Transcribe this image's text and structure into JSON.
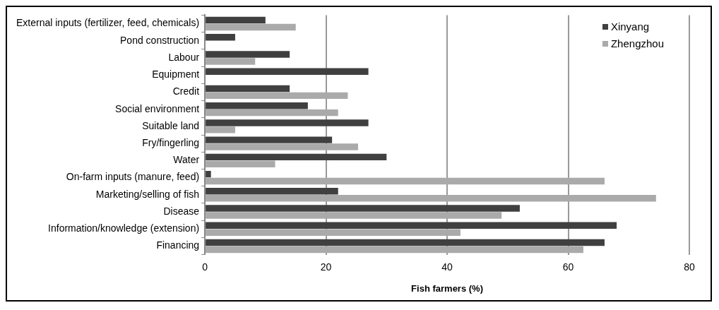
{
  "chart_data": {
    "type": "bar",
    "orientation": "horizontal",
    "xlabel": "Fish farmers (%)",
    "categories": [
      "External inputs (fertilizer, feed, chemicals)",
      "Pond construction",
      "Labour",
      "Equipment",
      "Credit",
      "Social environment",
      "Suitable land",
      "Fry/fingerling",
      "Water",
      "On-farm inputs (manure, feed)",
      "Marketing/selling of fish",
      "Disease",
      "Information/knowledge (extension)",
      "Financing"
    ],
    "series": [
      {
        "name": "Xinyang",
        "color": "#404040",
        "values": [
          10,
          5,
          14,
          27,
          14,
          17,
          27,
          21,
          30,
          1,
          22,
          52,
          68,
          66
        ]
      },
      {
        "name": "Zhengzhou",
        "color": "#aaaaaa",
        "values": [
          15,
          null,
          8.3,
          null,
          23.6,
          22,
          5,
          25.3,
          11.6,
          66,
          74.5,
          49,
          42.2,
          62.5
        ]
      }
    ],
    "xlim": [
      0,
      80
    ],
    "xticks": [
      0,
      20,
      40,
      60,
      80
    ],
    "grid": "x",
    "legend": "top right"
  }
}
